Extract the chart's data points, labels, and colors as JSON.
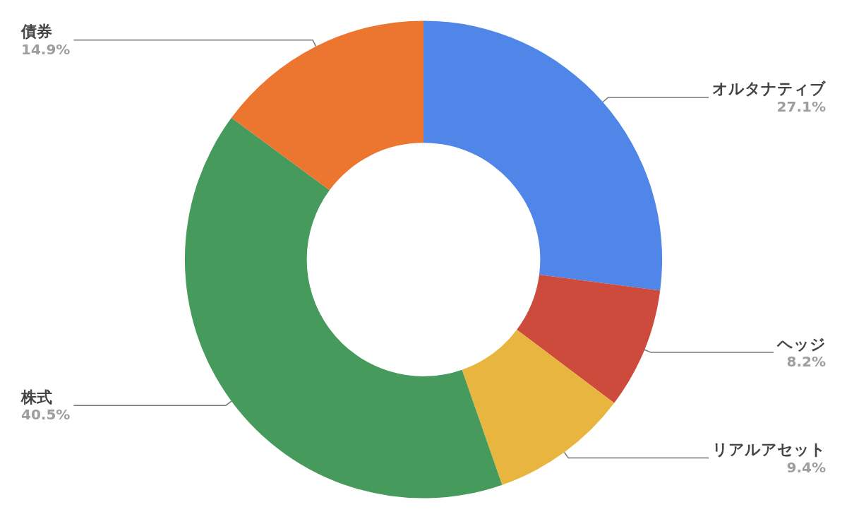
{
  "chart_data": {
    "type": "donut",
    "categories": [
      "オルタナティブ",
      "ヘッジ",
      "リアルアセット",
      "株式",
      "債券"
    ],
    "values": [
      27.1,
      8.2,
      9.4,
      40.5,
      14.9
    ],
    "colors": [
      "#4f86e8",
      "#cc4b3c",
      "#e8b63e",
      "#459a5c",
      "#ec7530"
    ],
    "value_labels": [
      "27.1%",
      "8.2%",
      "9.4%",
      "40.5%",
      "14.9%"
    ],
    "legend": false
  }
}
